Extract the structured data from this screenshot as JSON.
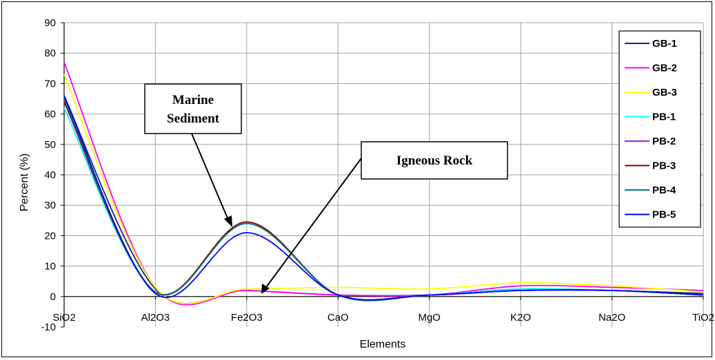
{
  "chart_data": {
    "type": "line",
    "xlabel": "Elements",
    "ylabel": "Percent (%)",
    "categories": [
      "SiO2",
      "Al2O3",
      "Fe2O3",
      "CaO",
      "MgO",
      "K2O",
      "Na2O",
      "TiO2"
    ],
    "ylim": [
      -10,
      90
    ],
    "yticks": [
      -10,
      0,
      10,
      20,
      30,
      40,
      50,
      60,
      70,
      80,
      90
    ],
    "grid": true,
    "legend_position": "right",
    "series": [
      {
        "name": "GB-1",
        "color": "#1a237e",
        "values": [
          66,
          2.5,
          2,
          0.5,
          0.5,
          2.5,
          2,
          1
        ]
      },
      {
        "name": "GB-2",
        "color": "#ff00ff",
        "values": [
          77,
          3,
          2,
          0.5,
          0.5,
          3.5,
          3,
          2
        ]
      },
      {
        "name": "GB-3",
        "color": "#ffff00",
        "values": [
          73,
          3,
          2.5,
          3,
          2.5,
          4.5,
          3.5,
          1.5
        ]
      },
      {
        "name": "PB-1",
        "color": "#00ffff",
        "values": [
          62,
          1.5,
          24,
          0.5,
          0.5,
          2.5,
          2,
          0.5
        ]
      },
      {
        "name": "PB-2",
        "color": "#a020f0",
        "values": [
          64,
          1.5,
          24.5,
          0.5,
          0.5,
          2,
          2,
          0.5
        ]
      },
      {
        "name": "PB-3",
        "color": "#8b0000",
        "values": [
          64,
          1.5,
          24.5,
          0.5,
          0.5,
          2,
          2,
          0.5
        ]
      },
      {
        "name": "PB-4",
        "color": "#008080",
        "values": [
          65,
          1.5,
          24,
          0.5,
          0.5,
          2,
          2,
          0.5
        ]
      },
      {
        "name": "PB-5",
        "color": "#0000ff",
        "values": [
          66,
          1,
          21,
          0.5,
          0.5,
          2,
          2,
          0.5
        ]
      }
    ],
    "annotations": [
      {
        "lines": [
          "Marine",
          "Sediment"
        ],
        "points_to": "Fe2O3"
      },
      {
        "lines": [
          "Igneous Rock"
        ],
        "points_to": "Fe2O3"
      }
    ]
  }
}
